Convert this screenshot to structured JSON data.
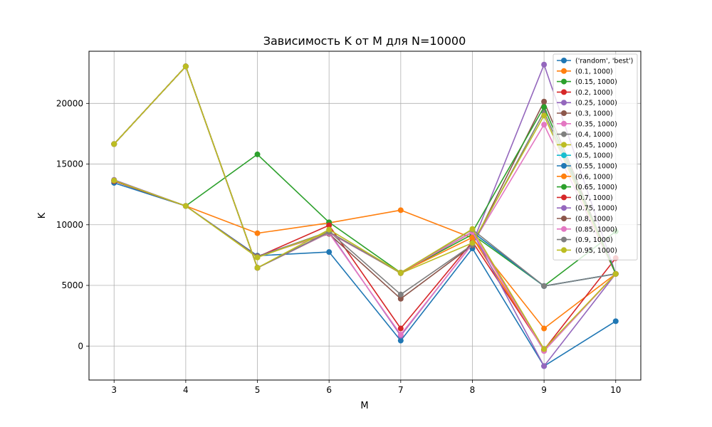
{
  "chart_data": {
    "type": "line",
    "title": "Зависимость K от M для N=10000",
    "xlabel": "M",
    "ylabel": "K",
    "x": [
      3,
      4,
      5,
      6,
      7,
      8,
      9,
      10
    ],
    "xlim": [
      2.65,
      10.35
    ],
    "ylim": [
      -2800,
      24300
    ],
    "yticks": [
      0,
      5000,
      10000,
      15000,
      20000
    ],
    "grid": true,
    "legend_position": "top-right",
    "series": [
      {
        "name": "('random', 'best')",
        "color": "#1f77b4",
        "values": [
          13450,
          11550,
          7450,
          7750,
          450,
          8050,
          -1650,
          2050
        ]
      },
      {
        "name": "(0.1, 1000)",
        "color": "#ff7f0e",
        "values": [
          13600,
          11550,
          9300,
          10150,
          11200,
          8900,
          1450,
          5950
        ]
      },
      {
        "name": "(0.15, 1000)",
        "color": "#2ca02c",
        "values": [
          13600,
          11550,
          15800,
          10200,
          6050,
          9200,
          4950,
          9450
        ]
      },
      {
        "name": "(0.2, 1000)",
        "color": "#d62728",
        "values": [
          13600,
          11550,
          7350,
          9950,
          1450,
          8600,
          -300,
          7250
        ]
      },
      {
        "name": "(0.25, 1000)",
        "color": "#9467bd",
        "values": [
          13700,
          11550,
          7400,
          9400,
          850,
          8450,
          23200,
          5950
        ]
      },
      {
        "name": "(0.3, 1000)",
        "color": "#8c564b",
        "values": [
          13650,
          11550,
          7400,
          9250,
          3900,
          8300,
          20150,
          5950
        ]
      },
      {
        "name": "(0.35, 1000)",
        "color": "#e377c2",
        "values": [
          13650,
          11550,
          7350,
          9300,
          950,
          8400,
          18250,
          5950
        ]
      },
      {
        "name": "(0.4, 1000)",
        "color": "#7f7f7f",
        "values": [
          13650,
          11550,
          7350,
          9450,
          4250,
          8350,
          19300,
          5950
        ]
      },
      {
        "name": "(0.45, 1000)",
        "color": "#bcbd22",
        "values": [
          13650,
          11550,
          7300,
          9400,
          6000,
          8500,
          19000,
          5950
        ]
      },
      {
        "name": "(0.5, 1000)",
        "color": "#17becf",
        "values": [
          16650,
          23050,
          6450,
          9350,
          6050,
          9400,
          4950,
          5950
        ]
      },
      {
        "name": "(0.55, 1000)",
        "color": "#1f77b4",
        "values": [
          16650,
          23050,
          6450,
          9350,
          6050,
          9400,
          4950,
          5950
        ]
      },
      {
        "name": "(0.6, 1000)",
        "color": "#ff7f0e",
        "values": [
          16650,
          23050,
          6450,
          9400,
          6050,
          8950,
          -300,
          5950
        ]
      },
      {
        "name": "(0.65, 1000)",
        "color": "#2ca02c",
        "values": [
          16650,
          23050,
          6450,
          9350,
          6050,
          9400,
          19700,
          5950
        ]
      },
      {
        "name": "(0.7, 1000)",
        "color": "#d62728",
        "values": [
          16650,
          23050,
          6450,
          9350,
          6050,
          9400,
          -300,
          5950
        ]
      },
      {
        "name": "(0.75, 1000)",
        "color": "#9467bd",
        "values": [
          16650,
          23050,
          6450,
          9350,
          6050,
          9400,
          -1650,
          5950
        ]
      },
      {
        "name": "(0.8, 1000)",
        "color": "#8c564b",
        "values": [
          16650,
          23050,
          6450,
          9350,
          6050,
          9400,
          -400,
          5950
        ]
      },
      {
        "name": "(0.85, 1000)",
        "color": "#e377c2",
        "values": [
          16650,
          23050,
          6450,
          9350,
          6050,
          9400,
          -400,
          5950
        ]
      },
      {
        "name": "(0.9, 1000)",
        "color": "#7f7f7f",
        "values": [
          16650,
          23050,
          6450,
          9400,
          6050,
          9600,
          4950,
          5950
        ]
      },
      {
        "name": "(0.95, 1000)",
        "color": "#bcbd22",
        "values": [
          16650,
          23050,
          6450,
          9600,
          6050,
          9650,
          -250,
          5950
        ]
      }
    ]
  }
}
